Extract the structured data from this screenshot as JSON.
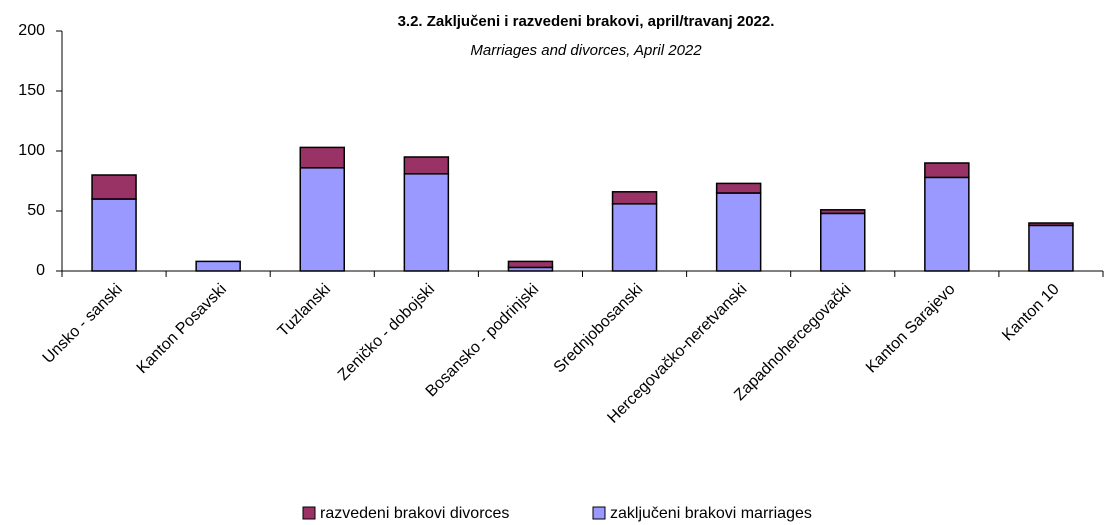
{
  "chart_data": {
    "type": "stacked_bar",
    "title": "3.2. Zaključeni i razvedeni brakovi, april/travanj 2022.",
    "subtitle": "Marriages and divorces, April 2022",
    "categories": [
      "Unsko - sanski",
      "Kanton Posavski",
      "Tuzlanski",
      "Zeničko - dobojski",
      "Bosansko - podrinjski",
      "Srednjobosanski",
      "Hercegovačko-neretvanski",
      "Zapadnohercegovački",
      "Kanton Sarajevo",
      "Kanton 10"
    ],
    "series": [
      {
        "name": "zaključeni brakovi marriages",
        "color": "#9999ff",
        "values": [
          60,
          8,
          86,
          81,
          3,
          56,
          65,
          48,
          78,
          38
        ]
      },
      {
        "name": "razvedeni brakovi divorces",
        "color": "#993366",
        "values": [
          20,
          0,
          17,
          14,
          5,
          10,
          8,
          3,
          12,
          2
        ]
      }
    ],
    "ylim": [
      0,
      200
    ],
    "yticks": [
      0,
      50,
      100,
      150,
      200
    ]
  }
}
